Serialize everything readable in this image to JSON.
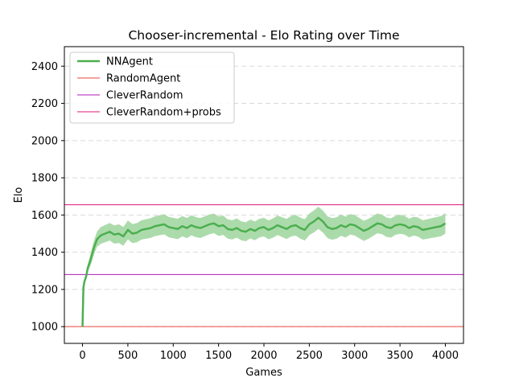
{
  "chart_data": {
    "type": "line",
    "title": "Chooser-incremental - Elo Rating over Time",
    "xlabel": "Games",
    "ylabel": "Elo",
    "xlim": [
      -200,
      4200
    ],
    "ylim": [
      910,
      2505
    ],
    "xticks": [
      0,
      500,
      1000,
      1500,
      2000,
      2500,
      3000,
      3500,
      4000
    ],
    "yticks": [
      1000,
      1200,
      1400,
      1600,
      1800,
      2000,
      2200,
      2400
    ],
    "grid": {
      "y": true,
      "x": false,
      "style": "dashed"
    },
    "legend": {
      "position": "top-left"
    },
    "series": [
      {
        "name": "NNAgent",
        "color": "#4caf50",
        "band_color": "#a8d9a6",
        "points": [
          [
            0,
            1000
          ],
          [
            10,
            1210
          ],
          [
            20,
            1240
          ],
          [
            40,
            1270
          ],
          [
            60,
            1320
          ],
          [
            80,
            1345
          ],
          [
            100,
            1380
          ],
          [
            130,
            1430
          ],
          [
            160,
            1470
          ],
          [
            200,
            1490
          ],
          [
            250,
            1500
          ],
          [
            300,
            1510
          ],
          [
            350,
            1495
          ],
          [
            400,
            1500
          ],
          [
            450,
            1485
          ],
          [
            500,
            1520
          ],
          [
            550,
            1500
          ],
          [
            600,
            1505
          ],
          [
            650,
            1520
          ],
          [
            700,
            1525
          ],
          [
            750,
            1530
          ],
          [
            800,
            1540
          ],
          [
            850,
            1545
          ],
          [
            900,
            1550
          ],
          [
            950,
            1535
          ],
          [
            1000,
            1530
          ],
          [
            1050,
            1525
          ],
          [
            1100,
            1540
          ],
          [
            1150,
            1530
          ],
          [
            1200,
            1545
          ],
          [
            1250,
            1535
          ],
          [
            1300,
            1530
          ],
          [
            1350,
            1540
          ],
          [
            1400,
            1550
          ],
          [
            1450,
            1555
          ],
          [
            1500,
            1540
          ],
          [
            1550,
            1545
          ],
          [
            1600,
            1525
          ],
          [
            1650,
            1520
          ],
          [
            1700,
            1530
          ],
          [
            1750,
            1515
          ],
          [
            1800,
            1510
          ],
          [
            1850,
            1525
          ],
          [
            1900,
            1515
          ],
          [
            1950,
            1530
          ],
          [
            2000,
            1535
          ],
          [
            2050,
            1520
          ],
          [
            2100,
            1530
          ],
          [
            2150,
            1545
          ],
          [
            2200,
            1535
          ],
          [
            2250,
            1525
          ],
          [
            2300,
            1540
          ],
          [
            2350,
            1545
          ],
          [
            2400,
            1530
          ],
          [
            2450,
            1520
          ],
          [
            2500,
            1550
          ],
          [
            2550,
            1565
          ],
          [
            2600,
            1585
          ],
          [
            2650,
            1565
          ],
          [
            2700,
            1535
          ],
          [
            2750,
            1525
          ],
          [
            2800,
            1530
          ],
          [
            2850,
            1545
          ],
          [
            2900,
            1535
          ],
          [
            2950,
            1550
          ],
          [
            3000,
            1545
          ],
          [
            3050,
            1530
          ],
          [
            3100,
            1515
          ],
          [
            3150,
            1525
          ],
          [
            3200,
            1540
          ],
          [
            3250,
            1555
          ],
          [
            3300,
            1550
          ],
          [
            3350,
            1535
          ],
          [
            3400,
            1530
          ],
          [
            3450,
            1545
          ],
          [
            3500,
            1550
          ],
          [
            3550,
            1545
          ],
          [
            3600,
            1530
          ],
          [
            3650,
            1540
          ],
          [
            3700,
            1535
          ],
          [
            3750,
            1520
          ],
          [
            3800,
            1525
          ],
          [
            3850,
            1530
          ],
          [
            3900,
            1535
          ],
          [
            3950,
            1540
          ],
          [
            4000,
            1555
          ]
        ],
        "band_halfwidth": [
          [
            0,
            0
          ],
          [
            100,
            35
          ],
          [
            200,
            45
          ],
          [
            400,
            50
          ],
          [
            1000,
            55
          ],
          [
            2000,
            50
          ],
          [
            2600,
            60
          ],
          [
            3000,
            55
          ],
          [
            3600,
            50
          ],
          [
            4000,
            55
          ]
        ]
      },
      {
        "name": "RandomAgent",
        "color": "#e8463d",
        "hline": 1000
      },
      {
        "name": "CleverRandom",
        "color": "#b01bb8",
        "hline": 1280
      },
      {
        "name": "CleverRandom+probs",
        "color": "#e0157a",
        "hline": 1655
      }
    ]
  }
}
